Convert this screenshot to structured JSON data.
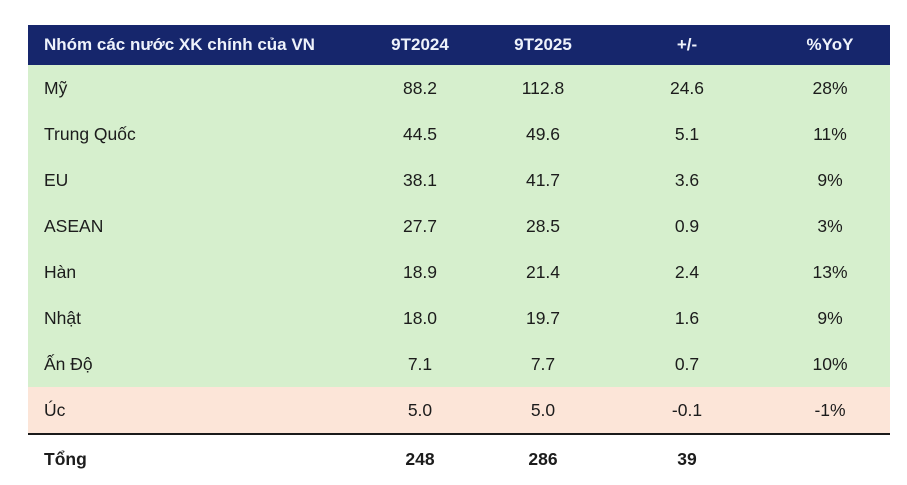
{
  "chart_data": {
    "type": "table",
    "title": "Nhóm các nước XK chính của VN",
    "columns": [
      "Nhóm các nước XK chính của VN",
      "9T2024",
      "9T2025",
      "+/-",
      "%YoY"
    ],
    "rows": [
      {
        "label": "Mỹ",
        "cells": [
          "88.2",
          "112.8",
          "24.6",
          "28%"
        ]
      },
      {
        "label": "Trung Quốc",
        "cells": [
          "44.5",
          "49.6",
          "5.1",
          "11%"
        ]
      },
      {
        "label": "EU",
        "cells": [
          "38.1",
          "41.7",
          "3.6",
          "9%"
        ]
      },
      {
        "label": "ASEAN",
        "cells": [
          "27.7",
          "28.5",
          "0.9",
          "3%"
        ]
      },
      {
        "label": "Hàn",
        "cells": [
          "18.9",
          "21.4",
          "2.4",
          "13%"
        ]
      },
      {
        "label": "Nhật",
        "cells": [
          "18.0",
          "19.7",
          "1.6",
          "9%"
        ]
      },
      {
        "label": "Ấn Độ",
        "cells": [
          "7.1",
          "7.7",
          "0.7",
          "10%"
        ]
      },
      {
        "label": "Úc",
        "cells": [
          "5.0",
          "5.0",
          "-0.1",
          "-1%"
        ]
      }
    ],
    "total": {
      "label": "Tổng",
      "cells": [
        "248",
        "286",
        "39",
        ""
      ]
    },
    "layout": {
      "highlight_row": "Úc",
      "grid": "off",
      "units_implied": "billion USD"
    }
  },
  "colors": {
    "header_bg": "#16266c",
    "header_text": "#eef2fb",
    "row_green": "#d6efcd",
    "row_pink": "#fce5d8",
    "body_text": "#1c1c1c",
    "total_border": "#1a1a1a"
  }
}
